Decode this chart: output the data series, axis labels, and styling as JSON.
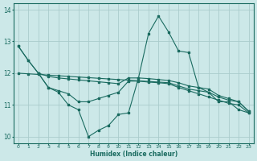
{
  "bg_color": "#cce8e8",
  "grid_color": "#aacccc",
  "line_color": "#1a6b60",
  "xlabel": "Humidex (Indice chaleur)",
  "xlim": [
    -0.5,
    23.5
  ],
  "ylim": [
    9.8,
    14.2
  ],
  "yticks": [
    10,
    11,
    12,
    13,
    14
  ],
  "xticks": [
    0,
    1,
    2,
    3,
    4,
    5,
    6,
    7,
    8,
    9,
    10,
    11,
    12,
    13,
    14,
    15,
    16,
    17,
    18,
    19,
    20,
    21,
    22,
    23
  ],
  "series": [
    {
      "x": [
        0,
        1,
        2,
        3,
        4,
        5,
        6,
        7,
        8,
        9,
        10,
        11,
        12,
        13,
        14,
        15,
        16,
        17,
        18,
        19,
        20,
        21,
        22,
        23
      ],
      "y": [
        12.85,
        12.4,
        12.0,
        11.9,
        11.85,
        11.82,
        11.79,
        11.76,
        11.73,
        11.7,
        11.67,
        11.85,
        11.85,
        11.83,
        11.8,
        11.77,
        11.7,
        11.6,
        11.55,
        11.5,
        11.3,
        11.2,
        11.1,
        10.8
      ]
    },
    {
      "x": [
        0,
        1,
        2,
        3,
        4,
        5,
        6,
        7,
        8,
        9,
        10,
        11,
        12,
        13,
        14,
        15,
        16,
        17,
        18,
        19,
        20,
        21,
        22,
        23
      ],
      "y": [
        12.0,
        11.98,
        11.96,
        11.94,
        11.92,
        11.9,
        11.88,
        11.86,
        11.84,
        11.82,
        11.8,
        11.78,
        11.76,
        11.74,
        11.72,
        11.7,
        11.6,
        11.5,
        11.45,
        11.4,
        11.25,
        11.15,
        11.1,
        10.8
      ]
    },
    {
      "x": [
        2,
        3,
        4,
        5,
        6,
        7,
        8,
        9,
        10,
        11,
        12,
        13,
        14,
        15,
        16,
        17,
        18,
        19,
        20,
        21,
        22,
        23
      ],
      "y": [
        12.0,
        11.55,
        11.45,
        11.35,
        11.1,
        11.1,
        11.2,
        11.3,
        11.4,
        11.75,
        11.75,
        11.72,
        11.7,
        11.67,
        11.55,
        11.45,
        11.35,
        11.25,
        11.15,
        11.05,
        11.0,
        10.75
      ]
    },
    {
      "x": [
        0,
        1,
        2,
        3,
        4,
        5,
        6,
        7,
        8,
        9,
        10,
        11,
        12,
        13,
        14,
        15,
        16,
        17,
        18,
        19,
        20,
        21,
        22,
        23
      ],
      "y": [
        12.85,
        12.4,
        12.0,
        11.55,
        11.4,
        11.0,
        10.85,
        10.0,
        10.2,
        10.35,
        10.7,
        10.75,
        11.85,
        13.25,
        13.8,
        13.3,
        12.7,
        12.65,
        11.55,
        11.4,
        11.1,
        11.1,
        10.85,
        10.75
      ]
    }
  ]
}
